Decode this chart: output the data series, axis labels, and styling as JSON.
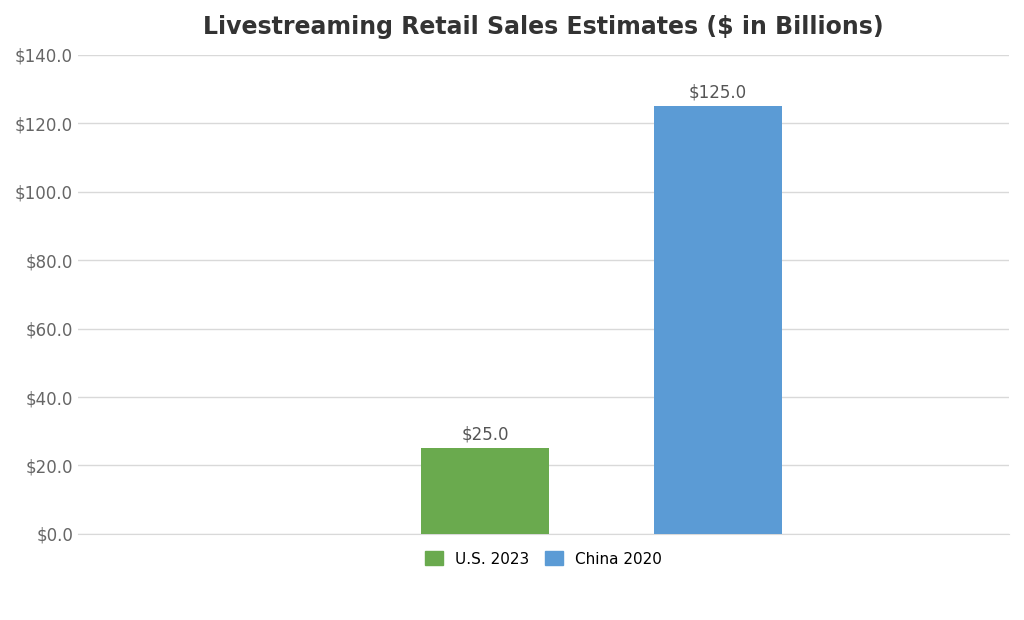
{
  "title": "Livestreaming Retail Sales Estimates ($ in Billions)",
  "categories": [
    "U.S. 2023",
    "China 2020"
  ],
  "values": [
    25.0,
    125.0
  ],
  "bar_colors": [
    "#6aaa4e",
    "#5b9bd5"
  ],
  "bar_labels": [
    "$25.0",
    "$125.0"
  ],
  "ylim": [
    0,
    140
  ],
  "yticks": [
    0,
    20,
    40,
    60,
    80,
    100,
    120,
    140
  ],
  "ytick_labels": [
    "$0.0",
    "$20.0",
    "$40.0",
    "$60.0",
    "$80.0",
    "$100.0",
    "$120.0",
    "$140.0"
  ],
  "background_color": "#ffffff",
  "grid_color": "#d9d9d9",
  "title_fontsize": 17,
  "tick_fontsize": 12,
  "annotation_fontsize": 12,
  "legend_fontsize": 11,
  "bar_width": 0.22,
  "x_positions": [
    1.0,
    1.4
  ],
  "xlim": [
    0.3,
    1.9
  ]
}
